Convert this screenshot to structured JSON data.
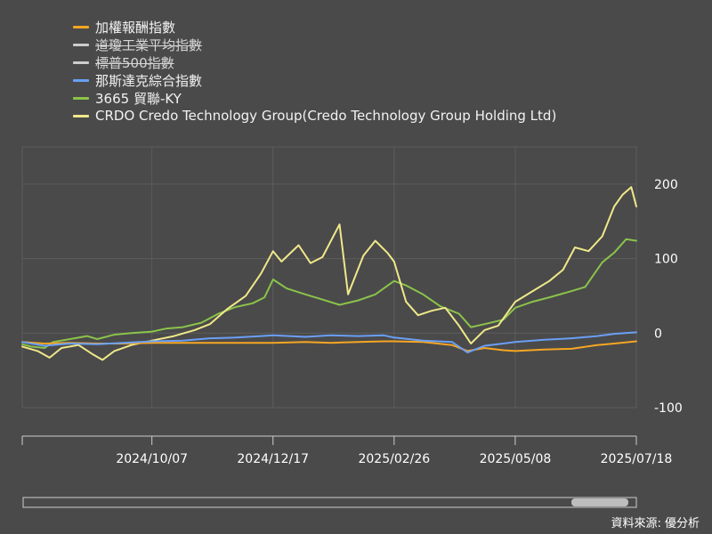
{
  "chart_data": {
    "type": "line",
    "ylim": [
      -100,
      250
    ],
    "yticks": [
      200,
      100,
      0,
      -100
    ],
    "x_labels": [
      "2024/10/07",
      "2024/12/17",
      "2025/02/26",
      "2025/05/08",
      "2025/07/18"
    ],
    "x_range": [
      "2024/07/23",
      "2025/07/18"
    ],
    "grid": true,
    "legend_position": "top-left",
    "series": [
      {
        "name": "加權報酬指數",
        "color": "#f5a623",
        "visible": true,
        "points": [
          [
            "2024/07/23",
            -12
          ],
          [
            "2024/08/05",
            -14
          ],
          [
            "2024/08/20",
            -13
          ],
          [
            "2024/09/05",
            -14
          ],
          [
            "2024/09/20",
            -14
          ],
          [
            "2024/10/07",
            -13
          ],
          [
            "2024/10/25",
            -13
          ],
          [
            "2024/11/10",
            -13
          ],
          [
            "2024/11/25",
            -13
          ],
          [
            "2024/12/10",
            -13
          ],
          [
            "2024/12/17",
            -13
          ],
          [
            "2025/01/05",
            -12
          ],
          [
            "2025/01/20",
            -13
          ],
          [
            "2025/02/05",
            -12
          ],
          [
            "2025/02/20",
            -11
          ],
          [
            "2025/02/26",
            -11
          ],
          [
            "2025/03/15",
            -12
          ],
          [
            "2025/04/01",
            -16
          ],
          [
            "2025/04/10",
            -24
          ],
          [
            "2025/04/20",
            -20
          ],
          [
            "2025/05/01",
            -23
          ],
          [
            "2025/05/08",
            -24
          ],
          [
            "2025/05/25",
            -22
          ],
          [
            "2025/06/10",
            -21
          ],
          [
            "2025/06/25",
            -16
          ],
          [
            "2025/07/05",
            -14
          ],
          [
            "2025/07/18",
            -11
          ]
        ]
      },
      {
        "name": "道瓊工業平均指數",
        "color": "#cccccc",
        "visible": false,
        "points": []
      },
      {
        "name": "標普500指數",
        "color": "#cccccc",
        "visible": false,
        "points": []
      },
      {
        "name": "那斯達克綜合指數",
        "color": "#6a9ff5",
        "visible": true,
        "points": [
          [
            "2024/07/23",
            -12
          ],
          [
            "2024/08/05",
            -17
          ],
          [
            "2024/08/20",
            -14
          ],
          [
            "2024/09/05",
            -15
          ],
          [
            "2024/09/20",
            -13
          ],
          [
            "2024/10/07",
            -11
          ],
          [
            "2024/10/25",
            -10
          ],
          [
            "2024/11/10",
            -7
          ],
          [
            "2024/11/25",
            -6
          ],
          [
            "2024/12/10",
            -4
          ],
          [
            "2024/12/17",
            -3
          ],
          [
            "2025/01/05",
            -5
          ],
          [
            "2025/01/20",
            -3
          ],
          [
            "2025/02/05",
            -4
          ],
          [
            "2025/02/20",
            -3
          ],
          [
            "2025/02/26",
            -6
          ],
          [
            "2025/03/15",
            -10
          ],
          [
            "2025/04/01",
            -12
          ],
          [
            "2025/04/10",
            -26
          ],
          [
            "2025/04/20",
            -17
          ],
          [
            "2025/05/01",
            -14
          ],
          [
            "2025/05/08",
            -12
          ],
          [
            "2025/05/25",
            -9
          ],
          [
            "2025/06/10",
            -7
          ],
          [
            "2025/06/25",
            -4
          ],
          [
            "2025/07/05",
            -1
          ],
          [
            "2025/07/18",
            1
          ]
        ]
      },
      {
        "name": "3665 貿聯-KY",
        "color": "#8bc34a",
        "visible": true,
        "points": [
          [
            "2024/07/23",
            -15
          ],
          [
            "2024/07/28",
            -18
          ],
          [
            "2024/08/05",
            -20
          ],
          [
            "2024/08/10",
            -12
          ],
          [
            "2024/08/20",
            -8
          ],
          [
            "2024/08/30",
            -4
          ],
          [
            "2024/09/05",
            -8
          ],
          [
            "2024/09/15",
            -2
          ],
          [
            "2024/09/25",
            0
          ],
          [
            "2024/10/07",
            2
          ],
          [
            "2024/10/15",
            6
          ],
          [
            "2024/10/25",
            8
          ],
          [
            "2024/11/05",
            14
          ],
          [
            "2024/11/15",
            26
          ],
          [
            "2024/11/25",
            35
          ],
          [
            "2024/12/05",
            40
          ],
          [
            "2024/12/12",
            48
          ],
          [
            "2024/12/17",
            72
          ],
          [
            "2024/12/25",
            60
          ],
          [
            "2025/01/05",
            52
          ],
          [
            "2025/01/15",
            45
          ],
          [
            "2025/01/25",
            38
          ],
          [
            "2025/02/05",
            44
          ],
          [
            "2025/02/15",
            52
          ],
          [
            "2025/02/26",
            70
          ],
          [
            "2025/03/05",
            64
          ],
          [
            "2025/03/15",
            52
          ],
          [
            "2025/03/25",
            36
          ],
          [
            "2025/04/05",
            26
          ],
          [
            "2025/04/12",
            8
          ],
          [
            "2025/04/20",
            12
          ],
          [
            "2025/05/01",
            18
          ],
          [
            "2025/05/08",
            34
          ],
          [
            "2025/05/18",
            42
          ],
          [
            "2025/05/28",
            48
          ],
          [
            "2025/06/08",
            55
          ],
          [
            "2025/06/18",
            62
          ],
          [
            "2025/06/28",
            95
          ],
          [
            "2025/07/05",
            108
          ],
          [
            "2025/07/12",
            126
          ],
          [
            "2025/07/18",
            124
          ]
        ]
      },
      {
        "name": "CRDO Credo Technology Group(Credo Technology Group Holding Ltd)",
        "color": "#f0e88a",
        "visible": true,
        "points": [
          [
            "2024/07/23",
            -18
          ],
          [
            "2024/08/01",
            -24
          ],
          [
            "2024/08/08",
            -33
          ],
          [
            "2024/08/15",
            -20
          ],
          [
            "2024/08/25",
            -16
          ],
          [
            "2024/09/02",
            -28
          ],
          [
            "2024/09/08",
            -36
          ],
          [
            "2024/09/15",
            -24
          ],
          [
            "2024/09/25",
            -16
          ],
          [
            "2024/10/07",
            -10
          ],
          [
            "2024/10/20",
            -4
          ],
          [
            "2024/11/01",
            4
          ],
          [
            "2024/11/10",
            12
          ],
          [
            "2024/11/20",
            32
          ],
          [
            "2024/12/01",
            50
          ],
          [
            "2024/12/10",
            80
          ],
          [
            "2024/12/17",
            110
          ],
          [
            "2024/12/22",
            96
          ],
          [
            "2025/01/01",
            118
          ],
          [
            "2025/01/08",
            94
          ],
          [
            "2025/01/15",
            102
          ],
          [
            "2025/01/25",
            146
          ],
          [
            "2025/01/30",
            52
          ],
          [
            "2025/02/08",
            104
          ],
          [
            "2025/02/15",
            124
          ],
          [
            "2025/02/22",
            108
          ],
          [
            "2025/02/26",
            96
          ],
          [
            "2025/03/05",
            42
          ],
          [
            "2025/03/12",
            24
          ],
          [
            "2025/03/20",
            30
          ],
          [
            "2025/03/28",
            34
          ],
          [
            "2025/04/05",
            10
          ],
          [
            "2025/04/12",
            -14
          ],
          [
            "2025/04/20",
            4
          ],
          [
            "2025/04/28",
            10
          ],
          [
            "2025/05/08",
            42
          ],
          [
            "2025/05/18",
            56
          ],
          [
            "2025/05/28",
            70
          ],
          [
            "2025/06/05",
            85
          ],
          [
            "2025/06/12",
            115
          ],
          [
            "2025/06/20",
            110
          ],
          [
            "2025/06/28",
            130
          ],
          [
            "2025/07/05",
            170
          ],
          [
            "2025/07/10",
            186
          ],
          [
            "2025/07/15",
            196
          ],
          [
            "2025/07/18",
            170
          ]
        ]
      }
    ]
  },
  "source_text": "資料來源: 優分析"
}
